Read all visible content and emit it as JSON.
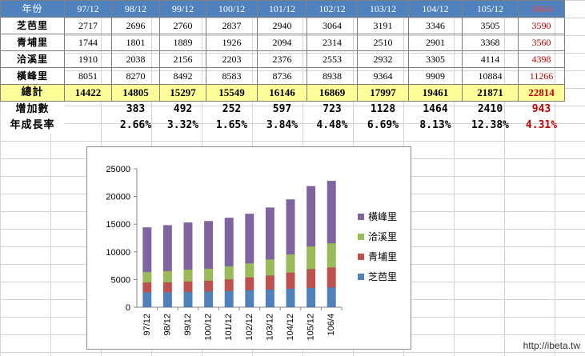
{
  "table": {
    "header": [
      "年份",
      "97/12",
      "98/12",
      "99/12",
      "100/12",
      "101/12",
      "102/12",
      "103/12",
      "104/12",
      "105/12",
      "106/4"
    ],
    "rows": [
      {
        "label": "芝芭里",
        "values": [
          "2717",
          "2696",
          "2760",
          "2837",
          "2940",
          "3064",
          "3191",
          "3346",
          "3505",
          "3590"
        ]
      },
      {
        "label": "青埔里",
        "values": [
          "1744",
          "1801",
          "1889",
          "1926",
          "2094",
          "2314",
          "2510",
          "2901",
          "3368",
          "3560"
        ]
      },
      {
        "label": "洽溪里",
        "values": [
          "1910",
          "2038",
          "2156",
          "2203",
          "2376",
          "2553",
          "2932",
          "3305",
          "4114",
          "4398"
        ]
      },
      {
        "label": "橫峰里",
        "values": [
          "8051",
          "8270",
          "8492",
          "8583",
          "8736",
          "8938",
          "9364",
          "9909",
          "10884",
          "11266"
        ]
      }
    ],
    "total": {
      "label": "總計",
      "values": [
        "14422",
        "14805",
        "15297",
        "15549",
        "16146",
        "16869",
        "17997",
        "19461",
        "21871",
        "22814"
      ]
    },
    "increase": {
      "label": "增加數",
      "values": [
        "",
        "383",
        "492",
        "252",
        "597",
        "723",
        "1128",
        "1464",
        "2410",
        "943"
      ]
    },
    "growth": {
      "label": "年成長率",
      "values": [
        "",
        "2.66%",
        "3.32%",
        "1.65%",
        "3.84%",
        "4.48%",
        "6.69%",
        "8.13%",
        "12.38%",
        "4.31%"
      ]
    }
  },
  "chart_data": {
    "type": "bar",
    "stacked": true,
    "categories": [
      "97/12",
      "98/12",
      "99/12",
      "100/12",
      "101/12",
      "102/12",
      "103/12",
      "104/12",
      "105/12",
      "106/4"
    ],
    "series": [
      {
        "name": "芝芭里",
        "color": "#4f81bd",
        "values": [
          2717,
          2696,
          2760,
          2837,
          2940,
          3064,
          3191,
          3346,
          3505,
          3590
        ]
      },
      {
        "name": "青埔里",
        "color": "#c0504d",
        "values": [
          1744,
          1801,
          1889,
          1926,
          2094,
          2314,
          2510,
          2901,
          3368,
          3560
        ]
      },
      {
        "name": "洽溪里",
        "color": "#9bbb59",
        "values": [
          1910,
          2038,
          2156,
          2203,
          2376,
          2553,
          2932,
          3305,
          4114,
          4398
        ]
      },
      {
        "name": "橫峰里",
        "color": "#8064a2",
        "values": [
          8051,
          8270,
          8492,
          8583,
          8736,
          8938,
          9364,
          9909,
          10884,
          11266
        ]
      }
    ],
    "ylim": [
      0,
      25000
    ],
    "yticks": [
      "0",
      "5000",
      "10000",
      "15000",
      "20000",
      "25000"
    ],
    "legend_position": "right",
    "title": "",
    "xlabel": "",
    "ylabel": ""
  },
  "watermark": "http://ibeta.tw"
}
